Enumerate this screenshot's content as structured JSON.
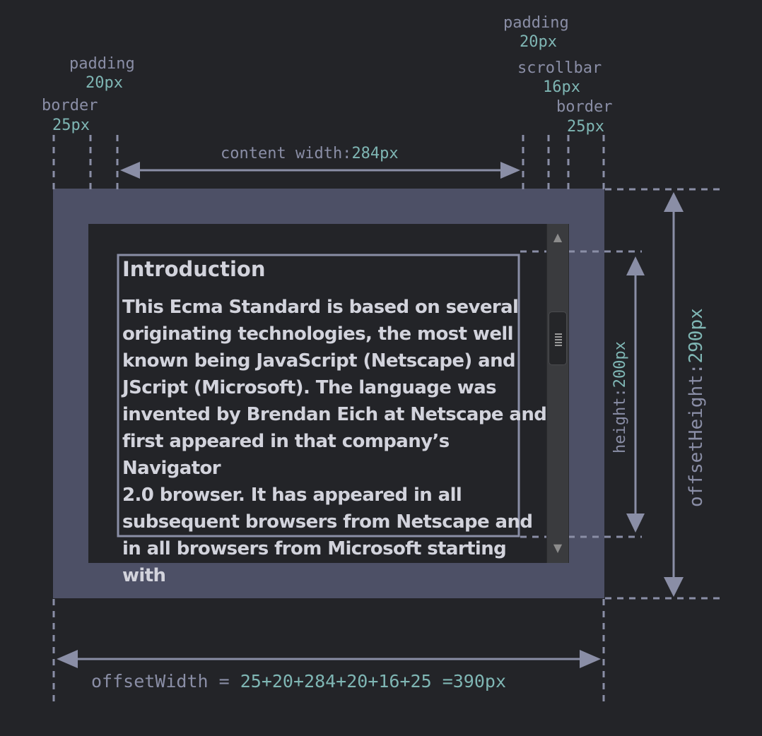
{
  "labels": {
    "padding_left": {
      "name": "padding",
      "value": "20px"
    },
    "border_left": {
      "name": "border",
      "value": "25px"
    },
    "padding_right": {
      "name": "padding",
      "value": "20px"
    },
    "scrollbar": {
      "name": "scrollbar",
      "value": "16px"
    },
    "border_right": {
      "name": "border",
      "value": "25px"
    },
    "content_width": {
      "name": "content width:",
      "value": "284px"
    },
    "height": {
      "name": "height:",
      "value": "200px"
    },
    "offset_height": {
      "name": "offsetHeight:",
      "value": "290px"
    },
    "offset_width": {
      "name": "offsetWidth = ",
      "value": "25+20+284+20+16+25 =390px"
    }
  },
  "content": {
    "heading": "Introduction",
    "lines": [
      "This Ecma Standard is based on several",
      "originating technologies, the most well",
      "known being JavaScript (Netscape) and",
      "JScript (Microsoft). The language was",
      "invented by Brendan Eich at Netscape and",
      "first appeared in that company’s Navigator",
      "2.0 browser. It has appeared in all",
      "subsequent browsers from Netscape and",
      "in all browsers from Microsoft starting",
      "with"
    ]
  },
  "scrollbar": {
    "up_icon": "▲",
    "down_icon": "▼"
  },
  "colors": {
    "background": "#232428",
    "border": "#4d5066",
    "line": "#8a8ea6",
    "value": "#7fb6b4",
    "text": "#d2d3dc"
  }
}
